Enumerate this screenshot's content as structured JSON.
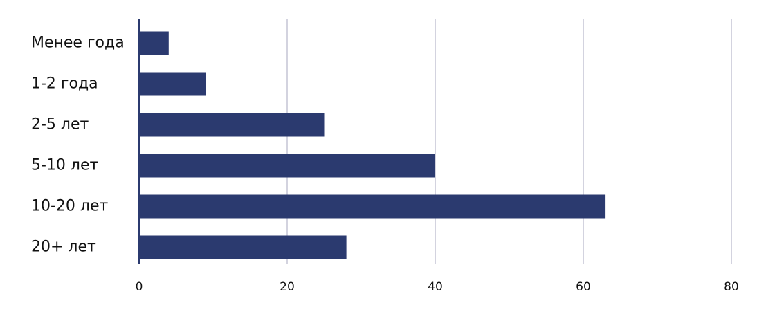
{
  "chart_data": {
    "type": "bar",
    "orientation": "horizontal",
    "categories": [
      "Менее года",
      "1-2 года",
      "2-5 лет",
      "5-10 лет",
      "10-20 лет",
      "20+ лет"
    ],
    "values": [
      4,
      9,
      25,
      40,
      63,
      28
    ],
    "color": "#2b3a6f",
    "xlim": [
      0,
      80
    ],
    "xticks": [
      0,
      20,
      40,
      60,
      80
    ],
    "grid": true
  }
}
